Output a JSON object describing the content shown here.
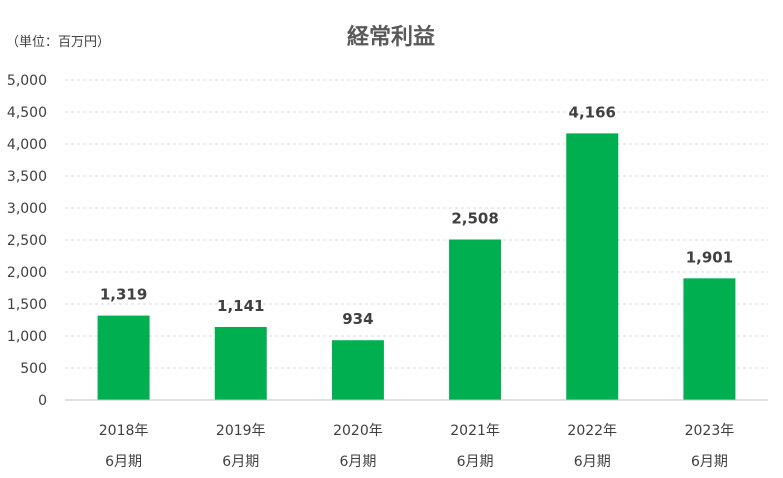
{
  "chart_data": {
    "type": "bar",
    "title": "経常利益",
    "unit_note": "（単位：百万円）",
    "categories": [
      [
        "2018年",
        "6月期"
      ],
      [
        "2019年",
        "6月期"
      ],
      [
        "2020年",
        "6月期"
      ],
      [
        "2021年",
        "6月期"
      ],
      [
        "2022年",
        "6月期"
      ],
      [
        "2023年",
        "6月期"
      ]
    ],
    "values": [
      1319,
      1141,
      934,
      2508,
      4166,
      1901
    ],
    "value_labels": [
      "1,319",
      "1,141",
      "934",
      "2,508",
      "4,166",
      "1,901"
    ],
    "yticks": [
      "0",
      "500",
      "1,000",
      "1,500",
      "2,000",
      "2,500",
      "3,000",
      "3,500",
      "4,000",
      "4,500",
      "5,000"
    ],
    "ylim": [
      0,
      5000
    ],
    "grid": true,
    "legend": "none",
    "bar_color": "#00b050"
  }
}
